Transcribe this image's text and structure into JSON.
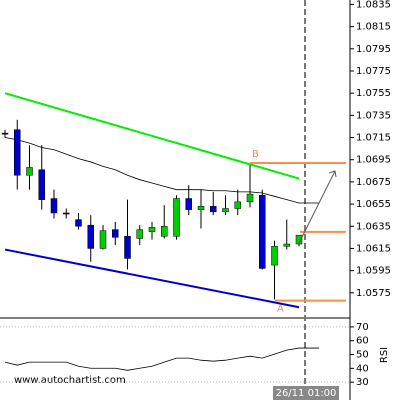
{
  "chart_data": [
    {
      "type": "candlestick",
      "categories": [
        null,
        null,
        null,
        null,
        null,
        null,
        null,
        null,
        null,
        null,
        null,
        null,
        null,
        null,
        null,
        null,
        null,
        null,
        null,
        null,
        null,
        null,
        null,
        null,
        null
      ],
      "open": [
        1.0719,
        1.0722,
        1.0681,
        1.0686,
        1.066,
        1.0647,
        1.0641,
        1.0636,
        1.0615,
        1.0632,
        1.0626,
        1.0624,
        1.063,
        1.0626,
        1.0626,
        1.066,
        1.065,
        1.0653,
        1.0648,
        1.0651,
        1.0657,
        1.0663,
        1.06,
        1.0617,
        1.0619
      ],
      "high": [
        1.0722,
        1.0731,
        1.0708,
        1.0708,
        1.0668,
        1.0651,
        1.0647,
        1.0645,
        1.0636,
        1.0639,
        1.0659,
        1.0636,
        1.0639,
        1.0654,
        1.0663,
        1.0672,
        1.0668,
        1.0666,
        1.0663,
        1.0668,
        1.069,
        1.0668,
        1.0622,
        1.0641,
        1.0627
      ],
      "low": [
        1.0715,
        1.0668,
        1.0668,
        1.065,
        1.0642,
        1.0642,
        1.0632,
        1.0603,
        1.0614,
        1.0618,
        1.0596,
        1.0618,
        1.0623,
        1.0624,
        1.0623,
        1.0645,
        1.0633,
        1.0645,
        1.0645,
        1.0645,
        1.0652,
        1.0596,
        1.0569,
        1.0614,
        1.0617
      ],
      "close": [
        1.0718,
        1.0681,
        1.0688,
        1.0659,
        1.0647,
        1.0646,
        1.0635,
        1.0615,
        1.0631,
        1.0625,
        1.0606,
        1.0632,
        1.0634,
        1.0635,
        1.066,
        1.065,
        1.0653,
        1.0648,
        1.0651,
        1.0657,
        1.0664,
        1.0597,
        1.0617,
        1.0619,
        1.0627
      ],
      "up_color": "#00cc00",
      "down_color": "#0000cc",
      "moving_average": {
        "color": "#000000",
        "values": [
          1.0715,
          1.0713,
          1.071,
          1.0706,
          1.0704,
          1.07,
          1.0696,
          1.0693,
          1.0689,
          1.0686,
          1.0681,
          1.0677,
          1.0674,
          1.0671,
          1.0668,
          1.0668,
          1.0668,
          1.0667,
          1.0667,
          1.0666,
          1.0666,
          1.0665,
          1.0662,
          1.0659,
          1.0656
        ]
      },
      "trend_lines": [
        {
          "color": "#00ee00",
          "values": [
            1.0755,
            1.0678
          ]
        },
        {
          "color": "#0000cc",
          "values": [
            1.0614,
            1.0562
          ]
        }
      ],
      "levels": [
        {
          "label": "B",
          "value": 1.0692,
          "color": "#ff8c4a"
        },
        {
          "label": "A",
          "value": 1.0568,
          "color": "#ff8c4a"
        },
        {
          "value": 1.063,
          "color": "#ff8c4a"
        }
      ],
      "ylim": [
        1.0555,
        1.0839
      ],
      "yticks": [
        1.0835,
        1.0815,
        1.0795,
        1.0775,
        1.0755,
        1.0735,
        1.0715,
        1.0695,
        1.0675,
        1.0655,
        1.0635,
        1.0615,
        1.0595,
        1.0575
      ],
      "time_label": "26/11 01:00",
      "watermark": "www.autochartist.com"
    },
    {
      "type": "line",
      "title": "RSI",
      "color": "#000000",
      "values": [
        44.5,
        42.3,
        44.5,
        44.5,
        44.5,
        44.5,
        41.5,
        40.1,
        40.1,
        40.1,
        38.6,
        40.1,
        41.5,
        44.5,
        47.4,
        47.4,
        45.9,
        45.2,
        45.9,
        47.4,
        48.8,
        47.4,
        50.3,
        53.2,
        54.7
      ],
      "ylim": [
        20,
        75
      ],
      "yticks": [
        70,
        60,
        50,
        40,
        30
      ]
    }
  ]
}
